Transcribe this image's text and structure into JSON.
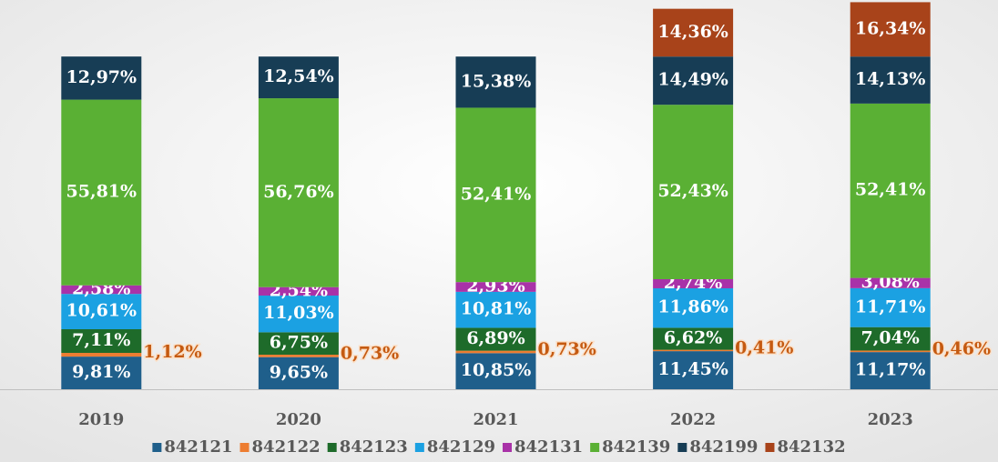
{
  "chart_data": {
    "type": "stacked-bar",
    "categories": [
      "2019",
      "2020",
      "2021",
      "2022",
      "2023"
    ],
    "ylim": [
      0,
      117
    ],
    "series": [
      {
        "name": "842121",
        "color": "#1f5f8b",
        "values": [
          9.81,
          9.65,
          10.85,
          11.45,
          11.17
        ],
        "value_labels": [
          "9,81%",
          "9,65%",
          "10,85%",
          "11,45%",
          "11,17%"
        ]
      },
      {
        "name": "842122",
        "color": "#ed7d31",
        "values": [
          1.12,
          0.73,
          0.73,
          0.41,
          0.46
        ],
        "value_labels": [
          "1,12%",
          "0,73%",
          "0,73%",
          "0,41%",
          "0,46%"
        ]
      },
      {
        "name": "842123",
        "color": "#1e6b2a",
        "values": [
          7.11,
          6.75,
          6.89,
          6.62,
          7.04
        ],
        "value_labels": [
          "7,11%",
          "6,75%",
          "6,89%",
          "6,62%",
          "7,04%"
        ]
      },
      {
        "name": "842129",
        "color": "#1ba1e2",
        "values": [
          10.61,
          11.03,
          10.81,
          11.86,
          11.71
        ],
        "value_labels": [
          "10,61%",
          "11,03%",
          "10,81%",
          "11,86%",
          "11,71%"
        ]
      },
      {
        "name": "842131",
        "color": "#a932a8",
        "values": [
          2.58,
          2.54,
          2.93,
          2.74,
          3.08
        ],
        "value_labels": [
          "2,58%",
          "2,54%",
          "2,93%",
          "2,74%",
          "3,08%"
        ]
      },
      {
        "name": "842139",
        "color": "#5ab034",
        "values": [
          55.81,
          56.76,
          52.41,
          52.43,
          52.41
        ],
        "value_labels": [
          "55,81%",
          "56,76%",
          "52,41%",
          "52,43%",
          "52,41%"
        ]
      },
      {
        "name": "842199",
        "color": "#173d55",
        "values": [
          12.97,
          12.54,
          15.38,
          14.49,
          14.13
        ],
        "value_labels": [
          "12,97%",
          "12,54%",
          "15,38%",
          "14,49%",
          "14,13%"
        ]
      },
      {
        "name": "842132",
        "color": "#a8431a",
        "values": [
          null,
          null,
          null,
          14.36,
          16.34
        ],
        "value_labels": [
          null,
          null,
          null,
          "14,36%",
          "16,34%"
        ]
      }
    ]
  }
}
